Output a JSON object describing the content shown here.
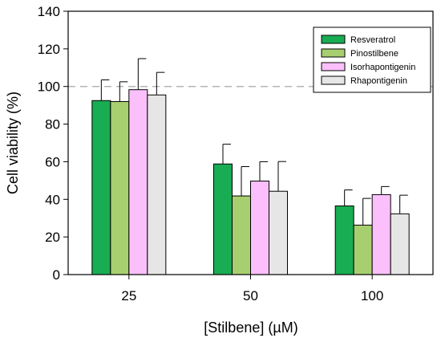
{
  "chart_data": {
    "type": "bar",
    "xlabel": "[Stilbene] (µM)",
    "ylabel": "Cell viability (%)",
    "ylim": [
      0,
      140
    ],
    "yticks": [
      0,
      20,
      40,
      60,
      80,
      100,
      120,
      140
    ],
    "categories": [
      "25",
      "50",
      "100"
    ],
    "reference_line": {
      "y": 100,
      "style": "dashed",
      "color": "#a8a8a8"
    },
    "legend_position": "top-right",
    "grid": false,
    "series": [
      {
        "name": "Resveratrol",
        "color": "#19ad53",
        "values": [
          92.5,
          58.8,
          36.5
        ],
        "errors": [
          11.0,
          10.5,
          8.5
        ]
      },
      {
        "name": "Pinostilbene",
        "color": "#a8cf6f",
        "values": [
          92.0,
          41.8,
          26.3
        ],
        "errors": [
          10.5,
          15.6,
          14.2
        ]
      },
      {
        "name": "Isorhapontigenin",
        "color": "#fbc0fb",
        "values": [
          98.3,
          49.7,
          42.5
        ],
        "errors": [
          16.5,
          10.3,
          4.3
        ]
      },
      {
        "name": "Rhapontigenin",
        "color": "#e6e6e6",
        "values": [
          95.5,
          44.3,
          32.3
        ],
        "errors": [
          12.0,
          15.8,
          9.9
        ]
      }
    ]
  }
}
